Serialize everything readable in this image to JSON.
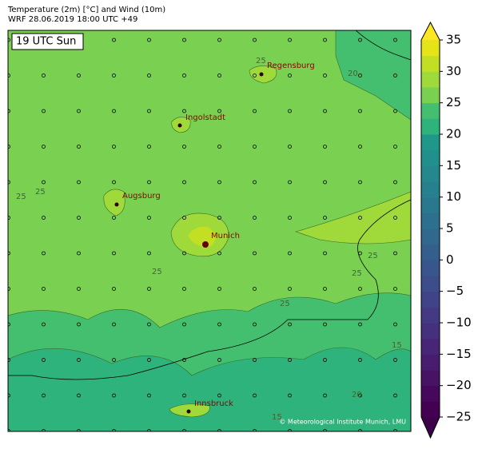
{
  "title": "Temperature (2m) [°C] and Wind (10m)",
  "subtitle": "WRF 28.06.2019 18:00 UTC +49",
  "time_label": "19 UTC Sun",
  "cities": [
    "Regensburg",
    "Ingolstadt",
    "Augsburg",
    "Munich",
    "Innsbruck"
  ],
  "contour_labels": [
    "25",
    "20",
    "25",
    "25",
    "25",
    "25",
    "25",
    "25",
    "20",
    "15",
    "15"
  ],
  "credit": "© Meteorological Institute Munich, LMU",
  "colorbar": {
    "lim": [
      -25,
      35
    ],
    "ticks": [
      35,
      30,
      25,
      20,
      15,
      10,
      5,
      0,
      {
        "value": -5,
        "label": "−5"
      },
      {
        "value": -10,
        "label": "−10"
      },
      {
        "value": -15,
        "label": "−15"
      },
      {
        "value": -20,
        "label": "−20"
      },
      {
        "value": -25,
        "label": "−25"
      }
    ],
    "colors": [
      "#440154",
      "#46085c",
      "#471365",
      "#481d6f",
      "#472677",
      "#45307e",
      "#433a83",
      "#404387",
      "#3c4d8a",
      "#38568b",
      "#345f8d",
      "#31688e",
      "#2d708e",
      "#2a788e",
      "#27808e",
      "#24888d",
      "#21908d",
      "#1f988b",
      "#2eb37c",
      "#44bf70",
      "#7ad151",
      "#9fda3a",
      "#c2df23",
      "#e5e419"
    ],
    "under_color": "#3b0149",
    "over_color": "#fde725"
  }
}
